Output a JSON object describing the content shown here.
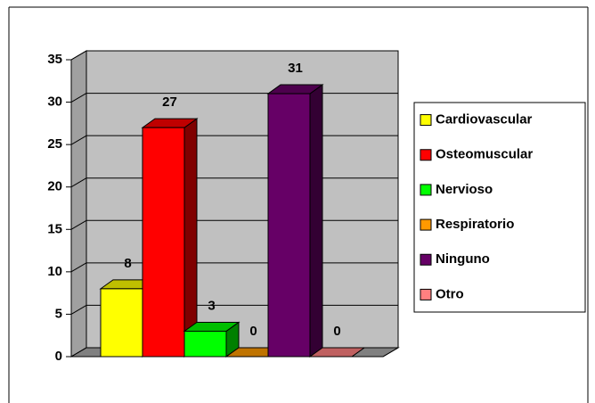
{
  "chart_data": {
    "type": "bar",
    "series": [
      {
        "name": "Cardiovascular",
        "color": "#ffff00",
        "values": [
          8
        ]
      },
      {
        "name": "Osteomuscular",
        "color": "#ff0000",
        "values": [
          27
        ]
      },
      {
        "name": "Nervioso",
        "color": "#00ff00",
        "values": [
          3
        ]
      },
      {
        "name": "Respiratorio",
        "color": "#ff9900",
        "values": [
          0
        ]
      },
      {
        "name": "Ninguno",
        "color": "#660066",
        "values": [
          31
        ]
      },
      {
        "name": "Otro",
        "color": "#ff8080",
        "values": [
          0
        ]
      }
    ],
    "ylim": [
      0,
      35
    ],
    "yticks": [
      0,
      5,
      10,
      15,
      20,
      25,
      30,
      35
    ],
    "grid": true,
    "legend": "right"
  }
}
